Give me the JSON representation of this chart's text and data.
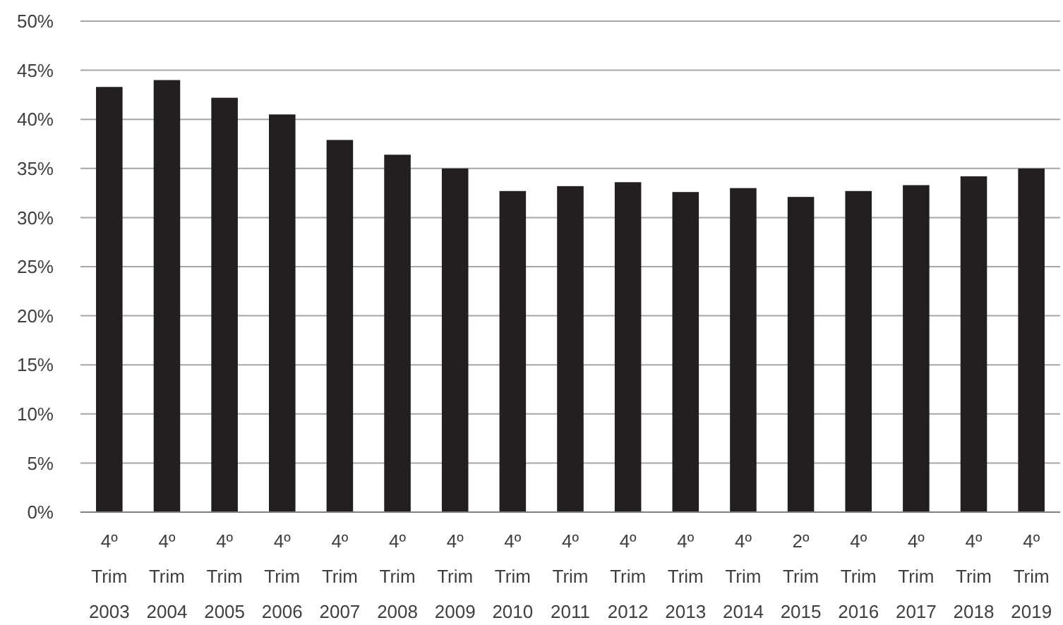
{
  "chart_data": {
    "type": "bar",
    "categories": [
      "4º Trim 2003",
      "4º Trim 2004",
      "4º Trim 2005",
      "4º Trim 2006",
      "4º Trim 2007",
      "4º Trim 2008",
      "4º Trim 2009",
      "4º Trim 2010",
      "4º Trim 2011",
      "4º Trim 2012",
      "4º Trim 2013",
      "4º Trim 2014",
      "2º Trim 2015",
      "4º Trim 2016",
      "4º Trim 2017",
      "4º Trim 2018",
      "4º Trim 2019"
    ],
    "values": [
      43.3,
      44.0,
      42.2,
      40.5,
      37.9,
      36.4,
      35.0,
      32.7,
      33.2,
      33.6,
      32.6,
      33.0,
      32.1,
      32.7,
      33.3,
      34.2,
      35.0
    ],
    "color": "#231f20",
    "ylim": [
      0,
      50
    ],
    "yticks": [
      {
        "value": 0,
        "label": "0%"
      },
      {
        "value": 5,
        "label": "5%"
      },
      {
        "value": 10,
        "label": "10%"
      },
      {
        "value": 15,
        "label": "15%"
      },
      {
        "value": 20,
        "label": "20%"
      },
      {
        "value": 25,
        "label": "25%"
      },
      {
        "value": 30,
        "label": "30%"
      },
      {
        "value": 35,
        "label": "35%"
      },
      {
        "value": 40,
        "label": "40%"
      },
      {
        "value": 45,
        "label": "45%"
      },
      {
        "value": 50,
        "label": "50%"
      }
    ],
    "grid": "y"
  }
}
